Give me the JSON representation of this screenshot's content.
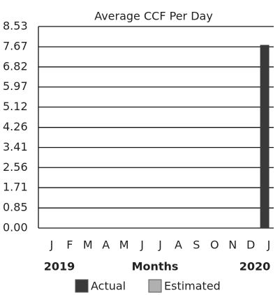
{
  "chart_data": {
    "type": "bar",
    "title": "Average CCF Per Day",
    "categories": [
      "J",
      "F",
      "M",
      "A",
      "M",
      "J",
      "J",
      "A",
      "S",
      "O",
      "N",
      "D",
      "J"
    ],
    "series": [
      {
        "name": "Actual",
        "color": "#3a3a3a",
        "values": [
          null,
          null,
          null,
          null,
          null,
          null,
          null,
          null,
          null,
          null,
          null,
          null,
          7.75
        ]
      },
      {
        "name": "Estimated",
        "color": "#b0b0b0",
        "values": [
          null,
          null,
          null,
          null,
          null,
          null,
          null,
          null,
          null,
          null,
          null,
          null,
          null
        ]
      }
    ],
    "x_label": "Months",
    "year_start": "2019",
    "year_end": "2020",
    "ylim": [
      0,
      8.53
    ],
    "yticks": [
      {
        "value": 0,
        "label": "0.00"
      },
      0.85,
      1.71,
      2.56,
      3.41,
      4.26,
      5.12,
      5.97,
      6.82,
      7.67,
      8.53
    ],
    "grid": true
  }
}
